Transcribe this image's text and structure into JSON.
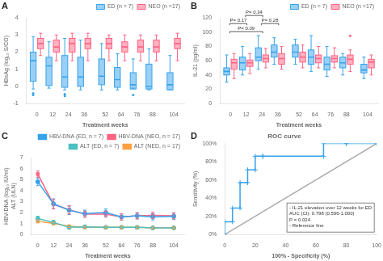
{
  "chart_data": [
    {
      "type": "box",
      "title": "A",
      "xlabel": "Treatment weeks",
      "ylabel": "HBeAg (log₁₀ S/CO)",
      "x": [
        0,
        12,
        24,
        36,
        52,
        64,
        76,
        88,
        104
      ],
      "xlim": [
        -8,
        112
      ],
      "xticks": [
        0,
        12,
        24,
        36,
        52,
        64,
        76,
        88,
        104
      ],
      "ylim": [
        -1,
        4
      ],
      "yticks": [
        -1,
        0,
        1,
        2,
        3,
        4
      ],
      "grid": false,
      "legend": "upper right",
      "series": [
        {
          "name": "ED (n = 7)",
          "color": "#36a2eb",
          "medians": [
            1.5,
            1.2,
            0.55,
            0.55,
            0.6,
            0.4,
            0.1,
            0.0,
            0.1
          ],
          "q1": [
            0.3,
            0.05,
            -0.05,
            0.0,
            0.1,
            -0.05,
            -0.15,
            -0.15,
            -0.2
          ],
          "q3": [
            2.0,
            1.7,
            1.8,
            1.7,
            1.6,
            1.1,
            0.8,
            1.3,
            0.8
          ],
          "whislo": [
            -0.15,
            -0.1,
            -0.2,
            -0.2,
            -0.2,
            -0.2,
            -0.1,
            -0.2,
            -0.2
          ],
          "whishi": [
            2.9,
            2.6,
            2.8,
            2.7,
            2.5,
            1.9,
            1.6,
            2.2,
            1.8
          ],
          "fliers": [
            [
              -0.4,
              -0.5
            ],
            [],
            [
              -0.45,
              -0.55
            ],
            [],
            [],
            [],
            [
              -0.5
            ],
            [],
            []
          ]
        },
        {
          "name": "NEO (n =17)",
          "color": "#ff6384",
          "medians": [
            2.5,
            2.3,
            2.5,
            2.5,
            2.5,
            2.3,
            2.3,
            2.3,
            2.5
          ],
          "q1": [
            2.2,
            2.0,
            2.0,
            2.2,
            2.2,
            2.0,
            2.0,
            2.0,
            2.2
          ],
          "q3": [
            2.8,
            2.7,
            2.8,
            2.8,
            2.8,
            2.6,
            2.7,
            2.7,
            2.8
          ],
          "whislo": [
            1.8,
            1.5,
            1.5,
            1.5,
            1.5,
            1.5,
            1.5,
            1.5,
            1.5
          ],
          "whishi": [
            3.1,
            3.0,
            3.1,
            3.1,
            3.0,
            3.0,
            3.0,
            3.0,
            3.1
          ]
        }
      ]
    },
    {
      "type": "box",
      "title": "B",
      "xlabel": "Treatment weeks",
      "ylabel": "IL-21 (pg/ml)",
      "x": [
        0,
        12,
        24,
        36,
        52,
        64,
        76,
        88,
        104
      ],
      "xlim": [
        -8,
        112
      ],
      "xticks": [
        0,
        12,
        24,
        36,
        52,
        64,
        76,
        88,
        104
      ],
      "ylim": [
        0,
        120
      ],
      "yticks": [
        0,
        20,
        40,
        60,
        80,
        100,
        120
      ],
      "grid": false,
      "legend": "upper right",
      "series": [
        {
          "name": "ED (n = 7)",
          "color": "#36a2eb",
          "medians": [
            45,
            57,
            65,
            72,
            72,
            65,
            55,
            57,
            47
          ],
          "q1": [
            40,
            47,
            60,
            65,
            65,
            55,
            47,
            50,
            43
          ],
          "q3": [
            50,
            65,
            78,
            82,
            82,
            75,
            65,
            65,
            55
          ],
          "whislo": [
            30,
            40,
            48,
            55,
            55,
            45,
            38,
            40,
            35
          ],
          "whishi": [
            68,
            80,
            95,
            92,
            90,
            95,
            80,
            70,
            65
          ]
        },
        {
          "name": "NEO (n =17)",
          "color": "#ff6384",
          "medians": [
            57,
            57,
            63,
            63,
            65,
            63,
            63,
            62,
            58
          ],
          "q1": [
            48,
            52,
            58,
            55,
            58,
            57,
            58,
            55,
            50
          ],
          "q3": [
            62,
            61,
            68,
            70,
            72,
            68,
            67,
            68,
            62
          ],
          "whislo": [
            35,
            42,
            50,
            48,
            50,
            50,
            50,
            45,
            40
          ],
          "whishi": [
            70,
            70,
            77,
            80,
            82,
            80,
            78,
            75,
            68
          ],
          "fliers": [
            [],
            [],
            [],
            [],
            [],
            [],
            [],
            [
              95
            ],
            []
          ]
        }
      ],
      "brackets": [
        {
          "from": 0,
          "to": 12,
          "label": "P= 0.17"
        },
        {
          "from": 12,
          "to": 24,
          "label": "P= 0.34"
        },
        {
          "from": 24,
          "to": 36,
          "label": "P= 0.28"
        },
        {
          "from": 0,
          "to": 24,
          "label": "P= 0.09"
        }
      ]
    },
    {
      "type": "line",
      "title": "C",
      "xlabel": "Treatment weeks",
      "ylabel": "HBV-DNA (log₁₀ IU/ml)\nALT (ULN)",
      "x": [
        0,
        12,
        24,
        36,
        52,
        64,
        76,
        88,
        104
      ],
      "xlim": [
        -5,
        112
      ],
      "xticks": [
        0,
        12,
        24,
        36,
        52,
        64,
        76,
        88,
        104
      ],
      "ylim": [
        0,
        7
      ],
      "yticks": [
        0,
        1,
        2,
        3,
        4,
        5,
        6,
        7
      ],
      "grid": false,
      "legend": "upper right",
      "series": [
        {
          "name": "HBV-DNA (ED, n = 7)",
          "color": "#36a2eb",
          "marker": "circle",
          "values": [
            4.8,
            2.8,
            2.2,
            1.9,
            2.0,
            1.6,
            1.7,
            1.6,
            1.65
          ],
          "errors": [
            0.35,
            0.45,
            0.38,
            0.32,
            0.32,
            0.28,
            0.28,
            0.28,
            0.28
          ]
        },
        {
          "name": "HBV-DNA (NEO, n = 17)",
          "color": "#ff6384",
          "marker": "square",
          "values": [
            5.5,
            2.75,
            2.25,
            1.85,
            1.85,
            1.6,
            1.7,
            1.75,
            1.7
          ],
          "errors": [
            0.28,
            0.42,
            0.38,
            0.28,
            0.28,
            0.28,
            0.28,
            0.28,
            0.28
          ]
        },
        {
          "name": "ALT (ED, n = 7)",
          "color": "#4bc0c0",
          "marker": "circle",
          "values": [
            1.45,
            1.1,
            0.65,
            0.7,
            0.65,
            0.65,
            0.65,
            0.6,
            0.6
          ],
          "errors": [
            0.22,
            0.18,
            0.14,
            0.14,
            0.14,
            0.14,
            0.14,
            0.11,
            0.11
          ]
        },
        {
          "name": "ALT (NED, n = 17)",
          "color": "#ff9f40",
          "marker": "square",
          "values": [
            1.2,
            1.0,
            0.75,
            0.65,
            0.65,
            0.65,
            0.65,
            0.6,
            0.6
          ],
          "errors": [
            0.14,
            0.13,
            0.11,
            0.11,
            0.11,
            0.11,
            0.11,
            0.09,
            0.09
          ]
        }
      ]
    },
    {
      "type": "line",
      "title": "D",
      "subtitle": "ROC curve",
      "xlabel": "100% - Specificity (%)",
      "ylabel": "Sensitivity (%)",
      "xlim": [
        0,
        100
      ],
      "xticks": [
        0,
        20,
        40,
        60,
        80,
        100
      ],
      "ylim": [
        0,
        100
      ],
      "yticks": [
        {
          "value": 0,
          "label": "0%"
        },
        {
          "value": 20,
          "label": "20%"
        },
        {
          "value": 40,
          "label": "40%"
        },
        {
          "value": 60,
          "label": "60%"
        },
        {
          "value": 80,
          "label": "80%"
        },
        {
          "value": 100,
          "label": "100%"
        }
      ],
      "grid": false,
      "series": [
        {
          "color": "#36a2eb",
          "marker": "plus",
          "x": [
            0,
            0,
            5,
            5,
            10,
            10,
            15,
            15,
            20,
            20,
            25,
            25,
            65,
            65,
            80,
            80,
            100
          ],
          "values": [
            0,
            14,
            14,
            29,
            29,
            57,
            57,
            71,
            71,
            86,
            86,
            86,
            86,
            100,
            100,
            100,
            100
          ]
        },
        {
          "color": "#aaaaaa",
          "x": [
            0,
            100
          ],
          "values": [
            0,
            100
          ]
        }
      ],
      "annotations": [
        "- IL-21 elevation over 12 weeks for ED",
        "AUC (CI): 0.798 (0.596-1.000)",
        "P = 0.024",
        "- Reference line"
      ]
    }
  ]
}
